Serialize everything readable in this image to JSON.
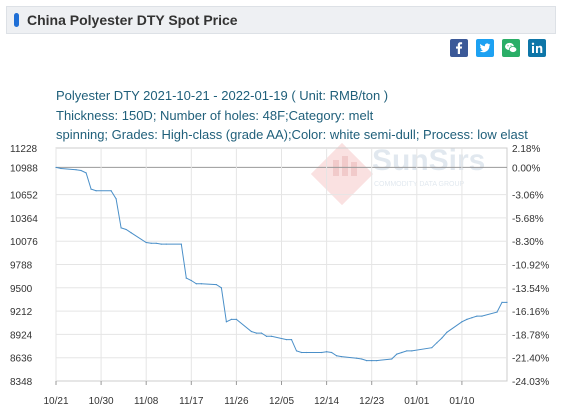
{
  "header": {
    "title": "China Polyester DTY Spot Price",
    "accent_color": "#1f6fd6"
  },
  "share": [
    {
      "name": "facebook-icon",
      "color": "#3b5998"
    },
    {
      "name": "twitter-icon",
      "color": "#1da1f2"
    },
    {
      "name": "wechat-icon",
      "color": "#2aae67"
    },
    {
      "name": "linkedin-icon",
      "color": "#0e76a8"
    }
  ],
  "info": {
    "line1": "Polyester DTY 2021-10-21 - 2022-01-19     ( Unit: RMB/ton )",
    "line2": "Thickness: 150D; Number of holes: 48F;Category: melt",
    "line3": "spinning; Grades: High-class (grade AA);Color: white semi-dull; Process: low elast"
  },
  "watermark": {
    "brand": "SunSirs",
    "tagline": "COMMODITY DATA GROUP"
  },
  "chart_data": {
    "type": "line",
    "title": "",
    "xlabel": "",
    "ylabel": "",
    "ylim": [
      8348,
      11228
    ],
    "y_ticks_left": [
      "11228",
      "10988",
      "10652",
      "10364",
      "10076",
      "9788",
      "9500",
      "9212",
      "8924",
      "8636",
      "8348"
    ],
    "y_ticks_right": [
      "2.18%",
      "0.00%",
      "-3.06%",
      "-5.68%",
      "-8.30%",
      "-10.92%",
      "-13.54%",
      "-16.16%",
      "-18.78%",
      "-21.40%",
      "-24.03%"
    ],
    "x_ticks": [
      "10/21",
      "10/30",
      "11/08",
      "11/17",
      "11/26",
      "12/05",
      "12/14",
      "12/23",
      "01/01",
      "01/10"
    ],
    "baseline_value": 10988,
    "top_label_color": "#cc0000",
    "line_color": "#4a8fc8",
    "grid": true,
    "series": [
      {
        "name": "",
        "points": [
          [
            "2021-10-21",
            10988
          ],
          [
            "2021-10-22",
            10975
          ],
          [
            "2021-10-25",
            10960
          ],
          [
            "2021-10-26",
            10950
          ],
          [
            "2021-10-27",
            10920
          ],
          [
            "2021-10-28",
            10720
          ],
          [
            "2021-10-29",
            10700
          ],
          [
            "2021-11-01",
            10700
          ],
          [
            "2021-11-02",
            10600
          ],
          [
            "2021-11-03",
            10240
          ],
          [
            "2021-11-04",
            10220
          ],
          [
            "2021-11-05",
            10180
          ],
          [
            "2021-11-08",
            10060
          ],
          [
            "2021-11-09",
            10050
          ],
          [
            "2021-11-10",
            10050
          ],
          [
            "2021-11-11",
            10040
          ],
          [
            "2021-11-12",
            10040
          ],
          [
            "2021-11-15",
            10040
          ],
          [
            "2021-11-16",
            9620
          ],
          [
            "2021-11-17",
            9590
          ],
          [
            "2021-11-18",
            9550
          ],
          [
            "2021-11-19",
            9550
          ],
          [
            "2021-11-22",
            9540
          ],
          [
            "2021-11-23",
            9500
          ],
          [
            "2021-11-24",
            9080
          ],
          [
            "2021-11-25",
            9110
          ],
          [
            "2021-11-26",
            9110
          ],
          [
            "2021-11-29",
            8960
          ],
          [
            "2021-11-30",
            8940
          ],
          [
            "2021-12-01",
            8940
          ],
          [
            "2021-12-02",
            8900
          ],
          [
            "2021-12-03",
            8900
          ],
          [
            "2021-12-06",
            8860
          ],
          [
            "2021-12-07",
            8860
          ],
          [
            "2021-12-08",
            8720
          ],
          [
            "2021-12-09",
            8700
          ],
          [
            "2021-12-10",
            8700
          ],
          [
            "2021-12-13",
            8700
          ],
          [
            "2021-12-14",
            8710
          ],
          [
            "2021-12-15",
            8700
          ],
          [
            "2021-12-16",
            8660
          ],
          [
            "2021-12-17",
            8650
          ],
          [
            "2021-12-20",
            8630
          ],
          [
            "2021-12-21",
            8620
          ],
          [
            "2021-12-22",
            8600
          ],
          [
            "2021-12-23",
            8600
          ],
          [
            "2021-12-24",
            8600
          ],
          [
            "2021-12-27",
            8620
          ],
          [
            "2021-12-28",
            8680
          ],
          [
            "2021-12-29",
            8700
          ],
          [
            "2021-12-30",
            8720
          ],
          [
            "2021-12-31",
            8720
          ],
          [
            "2022-01-04",
            8760
          ],
          [
            "2022-01-05",
            8820
          ],
          [
            "2022-01-06",
            8880
          ],
          [
            "2022-01-07",
            8950
          ],
          [
            "2022-01-10",
            9080
          ],
          [
            "2022-01-11",
            9110
          ],
          [
            "2022-01-12",
            9130
          ],
          [
            "2022-01-13",
            9150
          ],
          [
            "2022-01-14",
            9150
          ],
          [
            "2022-01-17",
            9200
          ],
          [
            "2022-01-18",
            9320
          ],
          [
            "2022-01-19",
            9320
          ]
        ]
      }
    ]
  }
}
